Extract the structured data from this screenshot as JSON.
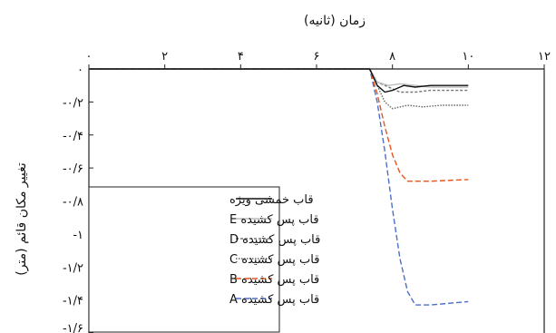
{
  "chart_data": {
    "type": "line",
    "xlabel": "زمان (ثانیه)",
    "ylabel": "تغییر مکان قائم (متر)",
    "x_axis_position": "top",
    "xlim": [
      0,
      12
    ],
    "ylim": [
      -1.6,
      0
    ],
    "x_ticks": [
      0,
      2,
      4,
      6,
      8,
      10,
      12
    ],
    "x_tick_labels": [
      "۰",
      "۲",
      "۴",
      "۶",
      "۸",
      "۱۰",
      "۱۲"
    ],
    "y_ticks": [
      0,
      -0.2,
      -0.4,
      -0.6,
      -0.8,
      -1.0,
      -1.2,
      -1.4,
      -1.6
    ],
    "y_tick_labels": [
      "۰",
      "-۰/۲",
      "-۰/۴",
      "-۰/۶",
      "-۰/۸",
      "-۱",
      "-۱/۲",
      "-۱/۴",
      "-۱/۶"
    ],
    "grid": false,
    "legend_position": "bottom-left",
    "series": [
      {
        "name": "قاب خمشی ویژه",
        "color": "#111111",
        "dash": "solid",
        "points": [
          [
            0,
            0
          ],
          [
            7.4,
            0
          ],
          [
            7.6,
            -0.1
          ],
          [
            7.8,
            -0.14
          ],
          [
            8.0,
            -0.13
          ],
          [
            8.3,
            -0.1
          ],
          [
            8.6,
            -0.11
          ],
          [
            9.0,
            -0.1
          ],
          [
            9.5,
            -0.1
          ],
          [
            10,
            -0.1
          ]
        ]
      },
      {
        "name": "قاب پس کشیده E",
        "color": "#bbbbbb",
        "dash": "solid",
        "points": [
          [
            0,
            0
          ],
          [
            7.4,
            0
          ],
          [
            7.6,
            -0.08
          ],
          [
            7.9,
            -0.1
          ],
          [
            8.2,
            -0.09
          ],
          [
            8.6,
            -0.1
          ],
          [
            9.0,
            -0.11
          ],
          [
            9.5,
            -0.11
          ],
          [
            10,
            -0.11
          ]
        ]
      },
      {
        "name": "قاب پس کشیده D",
        "color": "#777777",
        "dash": "short",
        "points": [
          [
            0,
            0
          ],
          [
            7.4,
            0
          ],
          [
            7.6,
            -0.08
          ],
          [
            7.9,
            -0.11
          ],
          [
            8.2,
            -0.14
          ],
          [
            8.6,
            -0.14
          ],
          [
            9.0,
            -0.13
          ],
          [
            9.5,
            -0.13
          ],
          [
            10,
            -0.13
          ]
        ]
      },
      {
        "name": "قاب پس کشیده C",
        "color": "#666666",
        "dash": "dotted",
        "points": [
          [
            0,
            0
          ],
          [
            7.4,
            0
          ],
          [
            7.6,
            -0.1
          ],
          [
            7.8,
            -0.2
          ],
          [
            8.0,
            -0.24
          ],
          [
            8.4,
            -0.22
          ],
          [
            8.8,
            -0.23
          ],
          [
            9.3,
            -0.22
          ],
          [
            10,
            -0.22
          ]
        ]
      },
      {
        "name": "قاب پس کشیده B",
        "color": "#e8531b",
        "dash": "long",
        "points": [
          [
            0,
            0
          ],
          [
            7.4,
            0
          ],
          [
            7.6,
            -0.15
          ],
          [
            7.8,
            -0.35
          ],
          [
            8.0,
            -0.52
          ],
          [
            8.2,
            -0.63
          ],
          [
            8.4,
            -0.68
          ],
          [
            9.0,
            -0.68
          ],
          [
            10,
            -0.67
          ]
        ]
      },
      {
        "name": "قاب پس کشیده A",
        "color": "#4a6fc9",
        "dash": "long",
        "points": [
          [
            0,
            0
          ],
          [
            7.4,
            0
          ],
          [
            7.6,
            -0.2
          ],
          [
            7.8,
            -0.5
          ],
          [
            8.0,
            -0.85
          ],
          [
            8.2,
            -1.15
          ],
          [
            8.4,
            -1.35
          ],
          [
            8.6,
            -1.43
          ],
          [
            9.0,
            -1.43
          ],
          [
            10,
            -1.41
          ]
        ]
      }
    ]
  }
}
